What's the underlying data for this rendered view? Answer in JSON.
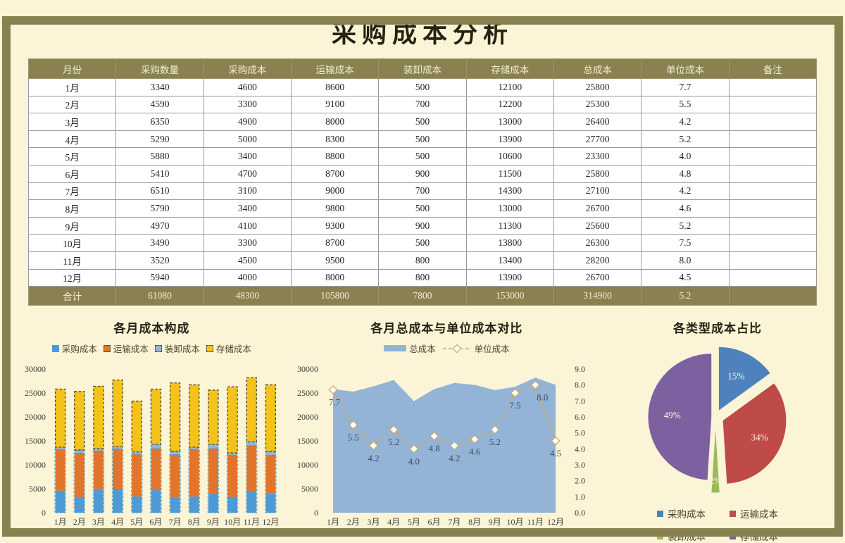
{
  "page": {
    "title": "采购成本分析"
  },
  "table": {
    "headers": [
      "月份",
      "采购数量",
      "采购成本",
      "运输成本",
      "装卸成本",
      "存储成本",
      "总成本",
      "单位成本",
      "备注"
    ],
    "rows": [
      [
        "1月",
        "3340",
        "4600",
        "8600",
        "500",
        "12100",
        "25800",
        "7.7",
        ""
      ],
      [
        "2月",
        "4590",
        "3300",
        "9100",
        "700",
        "12200",
        "25300",
        "5.5",
        ""
      ],
      [
        "3月",
        "6350",
        "4900",
        "8000",
        "500",
        "13000",
        "26400",
        "4.2",
        ""
      ],
      [
        "4月",
        "5290",
        "5000",
        "8300",
        "500",
        "13900",
        "27700",
        "5.2",
        ""
      ],
      [
        "5月",
        "5880",
        "3400",
        "8800",
        "500",
        "10600",
        "23300",
        "4.0",
        ""
      ],
      [
        "6月",
        "5410",
        "4700",
        "8700",
        "900",
        "11500",
        "25800",
        "4.8",
        ""
      ],
      [
        "7月",
        "6510",
        "3100",
        "9000",
        "700",
        "14300",
        "27100",
        "4.2",
        ""
      ],
      [
        "8月",
        "5790",
        "3400",
        "9800",
        "500",
        "13000",
        "26700",
        "4.6",
        ""
      ],
      [
        "9月",
        "4970",
        "4100",
        "9300",
        "900",
        "11300",
        "25600",
        "5.2",
        ""
      ],
      [
        "10月",
        "3490",
        "3300",
        "8700",
        "500",
        "13800",
        "26300",
        "7.5",
        ""
      ],
      [
        "11月",
        "3520",
        "4500",
        "9500",
        "800",
        "13400",
        "28200",
        "8.0",
        ""
      ],
      [
        "12月",
        "5940",
        "4000",
        "8000",
        "800",
        "13900",
        "26700",
        "4.5",
        ""
      ]
    ],
    "total_row": [
      "合计",
      "61080",
      "48300",
      "105800",
      "7800",
      "153000",
      "314900",
      "5.2",
      ""
    ]
  },
  "chart_data": [
    {
      "type": "bar",
      "stacked": true,
      "title": "各月成本构成",
      "categories": [
        "1月",
        "2月",
        "3月",
        "4月",
        "5月",
        "6月",
        "7月",
        "8月",
        "9月",
        "10月",
        "11月",
        "12月"
      ],
      "series": [
        {
          "name": "采购成本",
          "color": "#4D9AD4",
          "values": [
            4600,
            3300,
            4900,
            5000,
            3400,
            4700,
            3100,
            3400,
            4100,
            3300,
            4500,
            4000
          ]
        },
        {
          "name": "运输成本",
          "color": "#E2742C",
          "values": [
            8600,
            9100,
            8000,
            8300,
            8800,
            8700,
            9000,
            9800,
            9300,
            8700,
            9500,
            8000
          ]
        },
        {
          "name": "装卸成本",
          "color": "#93B6D4",
          "values": [
            500,
            700,
            500,
            500,
            500,
            900,
            700,
            500,
            900,
            500,
            800,
            800
          ]
        },
        {
          "name": "存储成本",
          "color": "#F4C31A",
          "values": [
            12100,
            12200,
            13000,
            13900,
            10600,
            11500,
            14300,
            13000,
            11300,
            13800,
            13400,
            13900
          ]
        }
      ],
      "ylim": [
        0,
        30000
      ],
      "ytick": 5000,
      "legend_position": "top",
      "grid": false
    },
    {
      "type": "area",
      "title": "各月总成本与单位成本对比",
      "categories": [
        "1月",
        "2月",
        "3月",
        "4月",
        "5月",
        "6月",
        "7月",
        "8月",
        "9月",
        "10月",
        "11月",
        "12月"
      ],
      "area_series": {
        "name": "总成本",
        "color": "#93B4D6",
        "values": [
          25800,
          25300,
          26400,
          27700,
          23300,
          25800,
          27100,
          26700,
          25600,
          26300,
          28200,
          26700
        ]
      },
      "line_series": {
        "name": "单位成本",
        "color": "#C6AC74",
        "values": [
          7.7,
          5.5,
          4.2,
          5.2,
          4.0,
          4.8,
          4.2,
          4.6,
          5.2,
          7.5,
          8.0,
          4.5
        ]
      },
      "ylim_left": [
        0,
        30000
      ],
      "ytick_left": 5000,
      "ylim_right": [
        0,
        9
      ],
      "ytick_right": 1,
      "legend_position": "top",
      "grid": false
    },
    {
      "type": "pie",
      "title": "各类型成本占比",
      "labels": [
        "采购成本",
        "运输成本",
        "装卸成本",
        "存储成本"
      ],
      "values": [
        15,
        34,
        2,
        49
      ],
      "display_labels": [
        "15%",
        "34%",
        "2%",
        "49%"
      ],
      "colors": [
        "#4F81BD",
        "#BE4B48",
        "#9BBB59",
        "#7D60A0"
      ],
      "legend_position": "bottom"
    }
  ],
  "frame_color": "#8A8151",
  "background_color": "#FBF4D6"
}
